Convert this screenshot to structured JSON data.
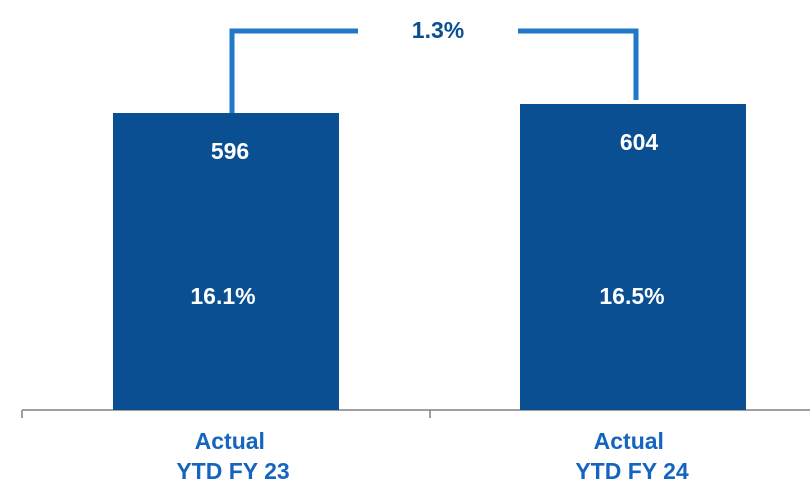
{
  "chart_data": {
    "type": "bar",
    "categories": [
      {
        "line1": "Actual",
        "line2": "YTD FY 23"
      },
      {
        "line1": "Actual",
        "line2": "YTD FY 24"
      }
    ],
    "values": [
      596,
      604
    ],
    "data_labels": [
      "596",
      "604"
    ],
    "percent_labels": [
      "16.1%",
      "16.5%"
    ],
    "growth_label": "1.3%",
    "colors": {
      "bar": "#0b4f93",
      "bar_text": "#ffffff",
      "category_text": "#1565c0",
      "connector": "#1f78c8",
      "growth_text": "#0b4f93",
      "axis": "#808080"
    }
  }
}
